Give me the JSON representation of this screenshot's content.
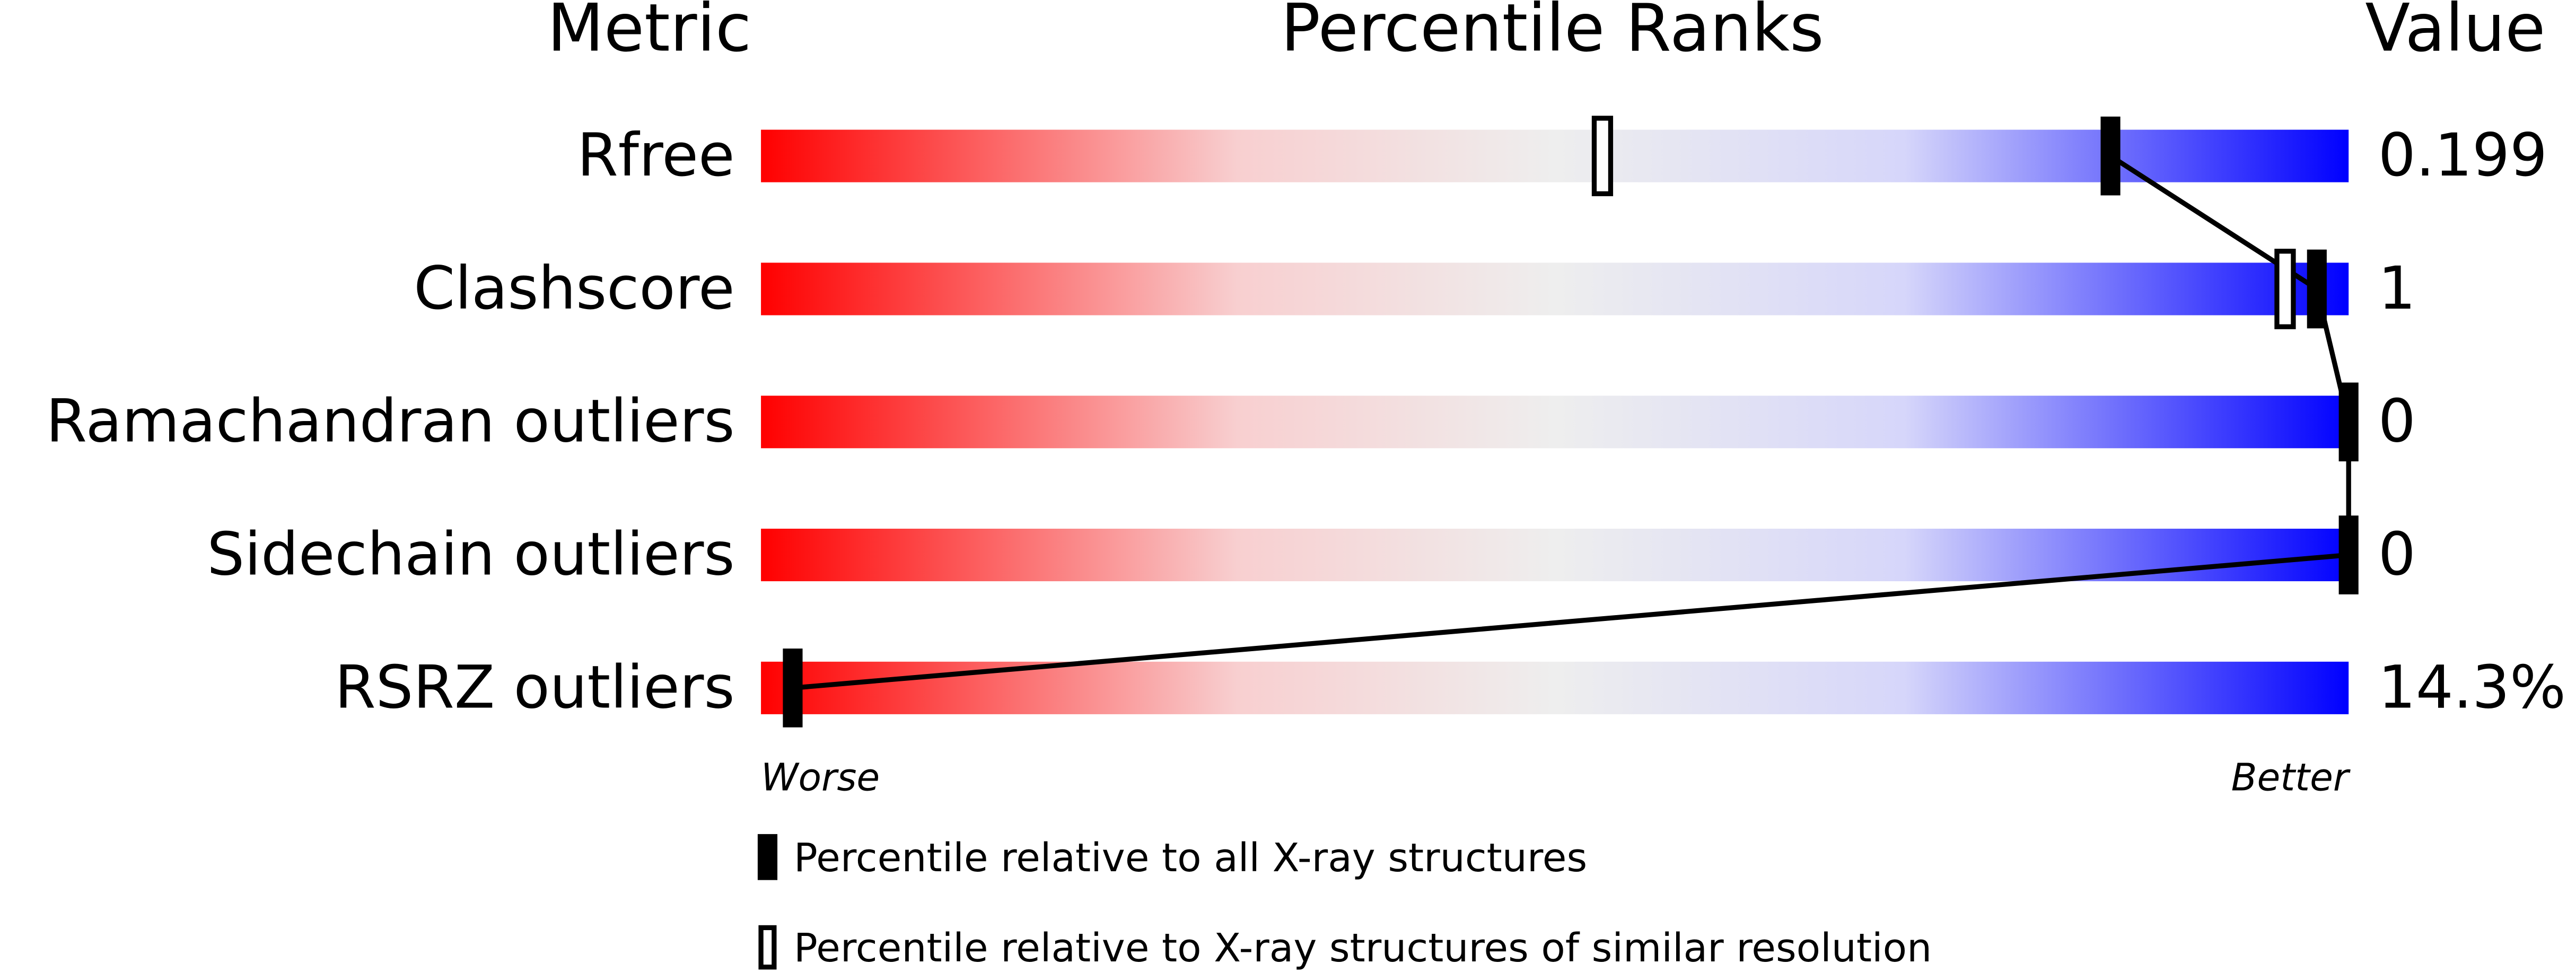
{
  "chart_data": {
    "type": "percentile",
    "title": "Percentile Ranks",
    "column_headers": [
      "Metric",
      "Percentile Ranks",
      "Value"
    ],
    "categories": [
      "Rfree",
      "Clashscore",
      "Ramachandran outliers",
      "Sidechain outliers",
      "RSRZ outliers"
    ],
    "values": [
      "0.199",
      "1",
      "0",
      "0",
      "14.3%"
    ],
    "xlim": [
      0,
      100
    ],
    "low_label": "Worse",
    "high_label": "Better",
    "series": [
      {
        "name": "Percentile relative to all X-ray structures",
        "color": "#000000",
        "style": "filled",
        "values": [
          85,
          98,
          100,
          100,
          2
        ]
      },
      {
        "name": "Percentile relative to X-ray structures of similar resolution",
        "color": "#000000",
        "style": "hollow",
        "values": [
          53,
          96,
          null,
          null,
          null
        ]
      }
    ]
  }
}
